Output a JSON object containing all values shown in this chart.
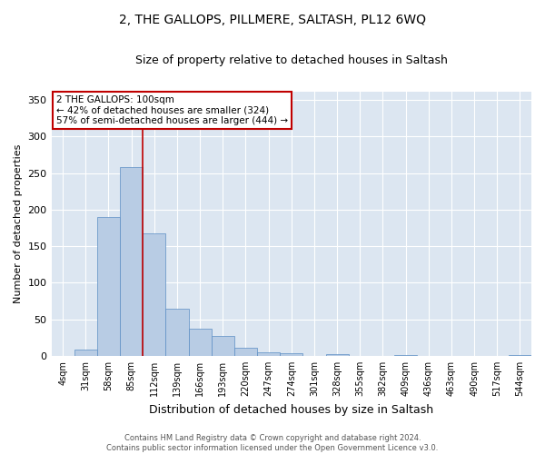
{
  "title": "2, THE GALLOPS, PILLMERE, SALTASH, PL12 6WQ",
  "subtitle": "Size of property relative to detached houses in Saltash",
  "xlabel": "Distribution of detached houses by size in Saltash",
  "ylabel": "Number of detached properties",
  "footer_line1": "Contains HM Land Registry data © Crown copyright and database right 2024.",
  "footer_line2": "Contains public sector information licensed under the Open Government Licence v3.0.",
  "categories": [
    "4sqm",
    "31sqm",
    "58sqm",
    "85sqm",
    "112sqm",
    "139sqm",
    "166sqm",
    "193sqm",
    "220sqm",
    "247sqm",
    "274sqm",
    "301sqm",
    "328sqm",
    "355sqm",
    "382sqm",
    "409sqm",
    "436sqm",
    "463sqm",
    "490sqm",
    "517sqm",
    "544sqm"
  ],
  "values": [
    0,
    8,
    190,
    258,
    168,
    65,
    37,
    27,
    11,
    5,
    4,
    0,
    3,
    0,
    0,
    1,
    0,
    0,
    0,
    0,
    1
  ],
  "bar_color": "#b8cce4",
  "bar_edge_color": "#5b8ec4",
  "background_color": "#ffffff",
  "plot_bg_color": "#dce6f1",
  "grid_color": "#ffffff",
  "vline_color": "#c00000",
  "vline_x": 3.5,
  "annotation_line1": "2 THE GALLOPS: 100sqm",
  "annotation_line2": "← 42% of detached houses are smaller (324)",
  "annotation_line3": "57% of semi-detached houses are larger (444) →",
  "annotation_box_facecolor": "#ffffff",
  "annotation_box_edgecolor": "#c00000",
  "ylim": [
    0,
    362
  ],
  "yticks": [
    0,
    50,
    100,
    150,
    200,
    250,
    300,
    350
  ],
  "title_fontsize": 10,
  "subtitle_fontsize": 9,
  "ylabel_fontsize": 8,
  "xlabel_fontsize": 9,
  "tick_fontsize": 7,
  "annotation_fontsize": 7.5,
  "footer_fontsize": 6
}
